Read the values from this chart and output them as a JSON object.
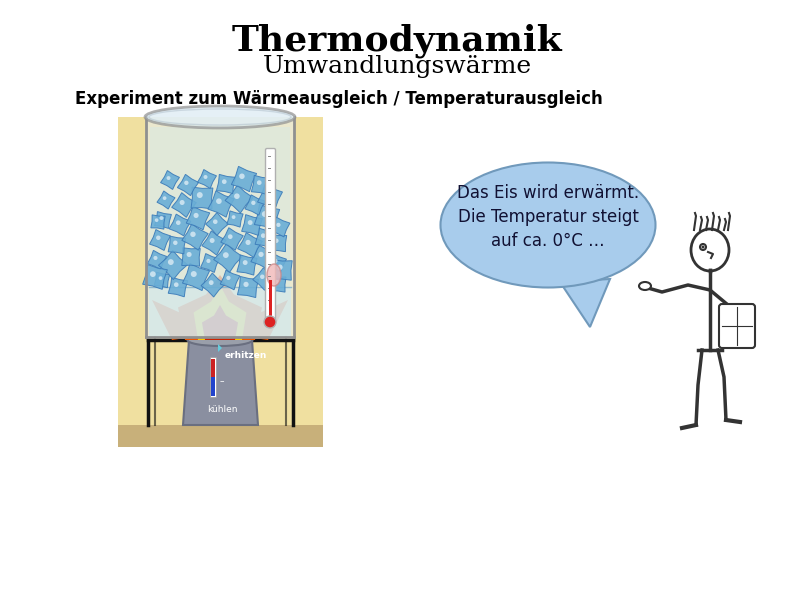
{
  "title": "Thermodynamik",
  "subtitle": "Umwandlungswärme",
  "experiment_label": "Experiment zum Wärmeausgleich / Temperaturausgleich",
  "speech_bubble_text": "Das Eis wird erwärmt.\nDie Temperatur steigt\nauf ca. 0°C …",
  "background_color": "#ffffff",
  "title_fontsize": 26,
  "subtitle_fontsize": 18,
  "experiment_fontsize": 12,
  "speech_fontsize": 12,
  "beaker_bg": "#f0e0a0",
  "beaker_wall": "#d8e8f0",
  "beaker_liquid": "#c0dce8",
  "beaker_liquid_top": "#ddeef5",
  "flame_orange": "#ee5500",
  "flame_red": "#cc2200",
  "flame_yellow": "#ffcc00",
  "burner_gray": "#8a8fa0",
  "burner_dark": "#6a6f80",
  "speech_fill": "#a8ccec",
  "speech_edge": "#7099bb",
  "stand_color": "#111111",
  "floor_color": "#c8b07a",
  "ice_blue": "#6aaed6",
  "ice_light": "#9fcde8",
  "ice_edge": "#3a7ab8"
}
